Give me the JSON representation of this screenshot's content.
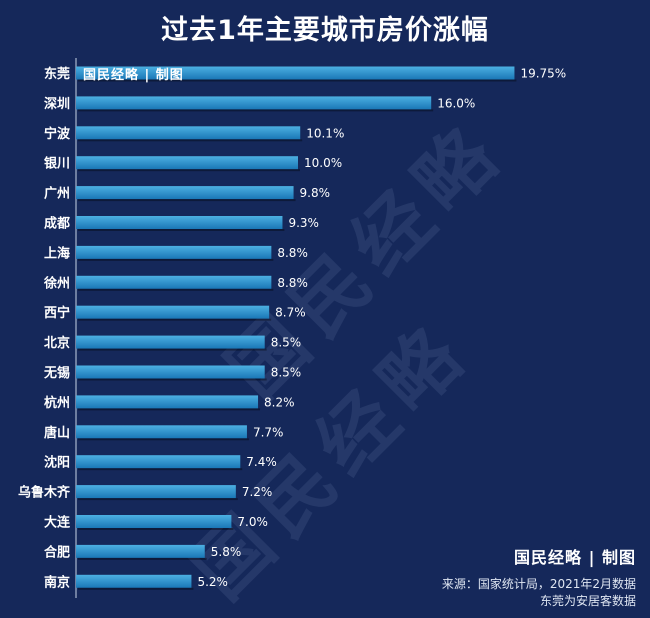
{
  "title": "过去1年主要城市房价涨幅",
  "banner": "国民经略 | 制图",
  "logo": "国民经略 | 制图",
  "watermark": "国民经略",
  "source_line1": "来源：国家统计局，2021年2月数据",
  "source_line2": "东莞为安居客数据",
  "colors": {
    "background": "#15285a",
    "bar_top": "#4cb0e2",
    "bar_bottom": "#1a77b6",
    "axis": "#c8d3e6",
    "text": "#ffffff"
  },
  "chart_data": {
    "type": "bar",
    "orientation": "horizontal",
    "categories": [
      "东莞",
      "深圳",
      "宁波",
      "银川",
      "广州",
      "成都",
      "上海",
      "徐州",
      "西宁",
      "北京",
      "无锡",
      "杭州",
      "唐山",
      "沈阳",
      "乌鲁木齐",
      "大连",
      "合肥",
      "南京"
    ],
    "values": [
      19.75,
      16.0,
      10.1,
      10.0,
      9.8,
      9.3,
      8.8,
      8.8,
      8.7,
      8.5,
      8.5,
      8.2,
      7.7,
      7.4,
      7.2,
      7.0,
      5.8,
      5.2
    ],
    "labels": [
      "19.75%",
      "16.0%",
      "10.1%",
      "10.0%",
      "9.8%",
      "9.3%",
      "8.8%",
      "8.8%",
      "8.7%",
      "8.5%",
      "8.5%",
      "8.2%",
      "7.7%",
      "7.4%",
      "7.2%",
      "7.0%",
      "5.8%",
      "5.2%"
    ],
    "unit": "%",
    "xlim": [
      0,
      20
    ],
    "grid": false
  }
}
